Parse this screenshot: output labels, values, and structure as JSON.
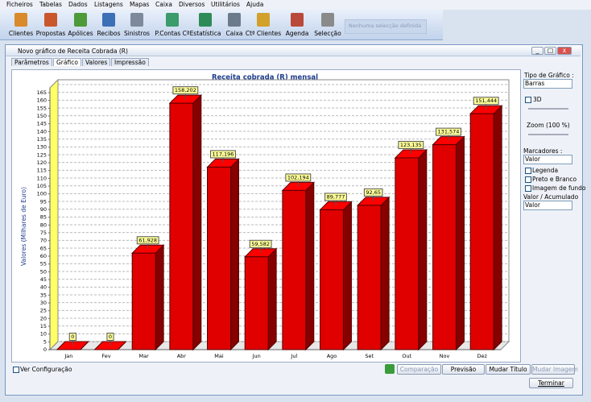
{
  "menu": [
    "Ficheiros",
    "Tabelas",
    "Dados",
    "Listagens",
    "Mapas",
    "Caixa",
    "Diversos",
    "Utilitários",
    "Ajuda"
  ],
  "toolbar": {
    "buttons": [
      "Clientes",
      "Propostas",
      "Apólices",
      "Recibos",
      "Sinistros",
      "P.Contas Cª",
      "Estatística",
      "Caixa",
      "Ctª Clientes",
      "Agenda",
      "Selecção"
    ],
    "selection": "Nenhuma selecção definida"
  },
  "window": {
    "title": "Novo gráfico de Receita Cobrada (R)",
    "tabs": [
      "Parâmetros",
      "Gráfico",
      "Valores",
      "Impressão"
    ]
  },
  "chart_data": {
    "type": "bar",
    "title": "Receita cobrada (R) mensal",
    "y_label": "Valores (Milhares de Euro)",
    "categories": [
      "Jan",
      "Fev",
      "Mar",
      "Abr",
      "Mai",
      "Jun",
      "Jul",
      "Ago",
      "Set",
      "Out",
      "Nov",
      "Dez"
    ],
    "values": [
      0,
      0,
      61.928,
      158.202,
      117.196,
      59.582,
      102.194,
      89.777,
      92.65,
      123.135,
      131.574,
      151.444
    ],
    "value_labels": [
      "0",
      "0",
      "61,928",
      "158,202",
      "117,196",
      "59,582",
      "102,194",
      "89,777",
      "92,65",
      "123,135",
      "131,574",
      "151,444"
    ],
    "color": "#e00000",
    "three_d": true,
    "grid": true,
    "ylim": [
      0,
      165
    ],
    "yticks": [
      0,
      5,
      10,
      15,
      20,
      25,
      30,
      35,
      40,
      45,
      50,
      55,
      60,
      65,
      70,
      75,
      80,
      85,
      90,
      95,
      100,
      105,
      110,
      115,
      120,
      125,
      130,
      135,
      140,
      145,
      150,
      155,
      160,
      165
    ]
  },
  "settings_panel": {
    "chart_type_label": "Tipo de Gráfico :",
    "chart_type": "Barras",
    "three_d": "3D",
    "zoom": "Zoom (100 %)",
    "markers_label": "Marcadores :",
    "markers": "Valor",
    "legend": "Legenda",
    "black_white": "Preto e Branco",
    "background_image": "Imagem de fundo",
    "value_mode_label": "Valor / Acumulado",
    "value_mode": "Valor"
  },
  "footer": {
    "show_config": "Ver Configuração",
    "buttons": [
      "Comparação",
      "Previsão",
      "Mudar Título",
      "Mudar Imagem"
    ],
    "close": "Terminar"
  }
}
